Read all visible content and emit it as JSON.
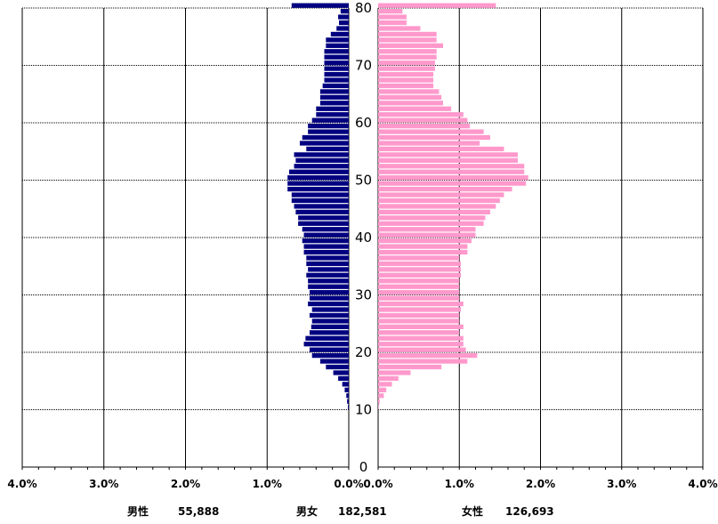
{
  "chart_data": {
    "type": "bar",
    "orientation": "population-pyramid",
    "male_color": "#000080",
    "female_color": "#ff99cc",
    "x_ticks_left": [
      "4.0%",
      "3.0%",
      "2.0%",
      "1.0%",
      "0.0%"
    ],
    "x_ticks_right": [
      "0.0%",
      "1.0%",
      "2.0%",
      "3.0%",
      "4.0%"
    ],
    "x_range_percent": [
      0,
      4.0
    ],
    "age_ticks": [
      "0",
      "10",
      "20",
      "30",
      "40",
      "50",
      "60",
      "70",
      "80"
    ],
    "age_range": [
      0,
      80
    ],
    "summary": {
      "male_label": "男性",
      "male_value": "55,888",
      "total_label": "男女",
      "total_value": "182,581",
      "female_label": "女性",
      "female_value": "126,693"
    },
    "series": [
      {
        "name": "男性",
        "ages": [
          0,
          1,
          2,
          3,
          4,
          5,
          6,
          7,
          8,
          9,
          10,
          11,
          12,
          13,
          14,
          15,
          16,
          17,
          18,
          19,
          20,
          21,
          22,
          23,
          24,
          25,
          26,
          27,
          28,
          29,
          30,
          31,
          32,
          33,
          34,
          35,
          36,
          37,
          38,
          39,
          40,
          41,
          42,
          43,
          44,
          45,
          46,
          47,
          48,
          49,
          50,
          51,
          52,
          53,
          54,
          55,
          56,
          57,
          58,
          59,
          60,
          61,
          62,
          63,
          64,
          65,
          66,
          67,
          68,
          69,
          70,
          71,
          72,
          73,
          74,
          75,
          76,
          77,
          78,
          79,
          80
        ],
        "values": [
          0,
          0,
          0,
          0,
          0,
          0,
          0,
          0,
          0,
          0,
          0.01,
          0.02,
          0.03,
          0.05,
          0.08,
          0.13,
          0.19,
          0.28,
          0.35,
          0.45,
          0.48,
          0.55,
          0.53,
          0.48,
          0.46,
          0.45,
          0.48,
          0.45,
          0.5,
          0.48,
          0.48,
          0.5,
          0.5,
          0.52,
          0.5,
          0.52,
          0.52,
          0.55,
          0.55,
          0.57,
          0.55,
          0.57,
          0.62,
          0.62,
          0.65,
          0.67,
          0.7,
          0.7,
          0.75,
          0.75,
          0.75,
          0.73,
          0.67,
          0.65,
          0.67,
          0.52,
          0.6,
          0.57,
          0.5,
          0.5,
          0.45,
          0.4,
          0.4,
          0.35,
          0.35,
          0.35,
          0.32,
          0.3,
          0.3,
          0.3,
          0.3,
          0.3,
          0.3,
          0.28,
          0.28,
          0.22,
          0.15,
          0.12,
          0.13,
          0.1,
          0.7
        ]
      },
      {
        "name": "女性",
        "ages": [
          0,
          1,
          2,
          3,
          4,
          5,
          6,
          7,
          8,
          9,
          10,
          11,
          12,
          13,
          14,
          15,
          16,
          17,
          18,
          19,
          20,
          21,
          22,
          23,
          24,
          25,
          26,
          27,
          28,
          29,
          30,
          31,
          32,
          33,
          34,
          35,
          36,
          37,
          38,
          39,
          40,
          41,
          42,
          43,
          44,
          45,
          46,
          47,
          48,
          49,
          50,
          51,
          52,
          53,
          54,
          55,
          56,
          57,
          58,
          59,
          60,
          61,
          62,
          63,
          64,
          65,
          66,
          67,
          68,
          69,
          70,
          71,
          72,
          73,
          74,
          75,
          76,
          77,
          78,
          79,
          80
        ],
        "values": [
          0,
          0,
          0,
          0,
          0,
          0,
          0,
          0,
          0,
          0,
          0.01,
          0.02,
          0.07,
          0.1,
          0.17,
          0.25,
          0.4,
          0.78,
          1.1,
          1.22,
          1.08,
          1.05,
          1.05,
          1.0,
          1.05,
          1.0,
          1.0,
          1.02,
          1.05,
          1.0,
          1.0,
          1.0,
          1.0,
          1.02,
          1.02,
          1.02,
          1.0,
          1.1,
          1.1,
          1.15,
          1.2,
          1.2,
          1.3,
          1.32,
          1.38,
          1.45,
          1.5,
          1.55,
          1.65,
          1.82,
          1.85,
          1.8,
          1.8,
          1.72,
          1.72,
          1.55,
          1.25,
          1.38,
          1.3,
          1.13,
          1.1,
          1.05,
          0.9,
          0.8,
          0.78,
          0.75,
          0.68,
          0.68,
          0.68,
          0.7,
          0.7,
          0.72,
          0.72,
          0.8,
          0.72,
          0.72,
          0.52,
          0.35,
          0.35,
          0.3,
          1.45
        ]
      }
    ]
  }
}
